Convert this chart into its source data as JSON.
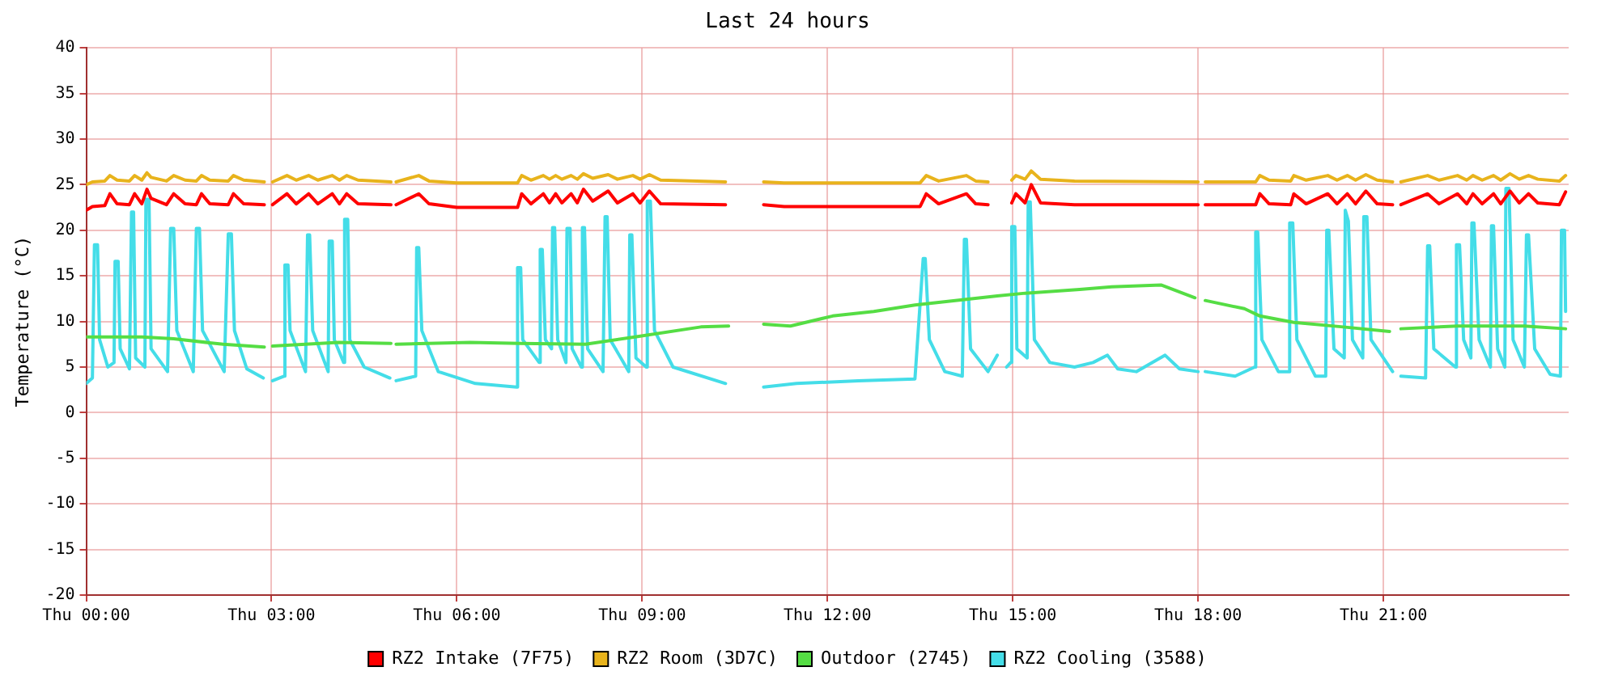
{
  "chart_data": {
    "type": "line",
    "title": "Last 24 hours",
    "ylabel": "Temperature (°C)",
    "xlim": [
      "--01-02T00:00",
      "--01-03T00:00"
    ],
    "ylim": [
      -20,
      40
    ],
    "xticks": [
      {
        "value": "--01-02T00:00",
        "label": "Thu 00:00"
      },
      {
        "value": "--01-02T03:00",
        "label": "Thu 03:00"
      },
      {
        "value": "--01-02T06:00",
        "label": "Thu 06:00"
      },
      {
        "value": "--01-02T09:00",
        "label": "Thu 09:00"
      },
      {
        "value": "--01-02T12:00",
        "label": "Thu 12:00"
      },
      {
        "value": "--01-02T15:00",
        "label": "Thu 15:00"
      },
      {
        "value": "--01-02T18:00",
        "label": "Thu 18:00"
      },
      {
        "value": "--01-02T21:00",
        "label": "Thu 21:00"
      }
    ],
    "yticks": [
      -20,
      -15,
      -10,
      -5,
      0,
      5,
      10,
      15,
      20,
      25,
      30,
      35,
      40
    ],
    "grid": true,
    "legend": "bottom",
    "marker": "none",
    "line_style": "solid",
    "x": [
      "--01-02T00:00",
      "--01-02T00:06",
      "--01-02T00:18",
      "--01-02T00:23",
      "--01-02T00:30",
      "--01-02T00:42",
      "--01-02T00:47",
      "--01-02T00:54",
      "--01-02T00:59",
      "--01-02T01:03",
      "--01-02T01:18",
      "--01-02T01:25",
      "--01-02T01:36",
      "--01-02T01:47",
      "--01-02T01:52",
      "--01-02T02:00",
      "--01-02T02:18",
      "--01-02T02:23",
      "--01-02T02:33",
      "--01-02T02:53",
      "--01-02T02:57",
      "--01-02T03:01",
      "--01-02T03:15",
      "--01-02T03:24",
      "--01-02T03:36",
      "--01-02T03:45",
      "--01-02T03:59",
      "--01-02T04:06",
      "--01-02T04:13",
      "--01-02T04:24",
      "--01-02T04:56",
      "--01-02T04:58",
      "--01-02T05:01",
      "--01-02T05:23",
      "--01-02T05:33",
      "--01-02T06:00",
      "--01-02T06:59",
      "--01-02T07:03",
      "--01-02T07:12",
      "--01-02T07:24",
      "--01-02T07:30",
      "--01-02T07:36",
      "--01-02T07:42",
      "--01-02T07:51",
      "--01-02T07:57",
      "--01-02T08:03",
      "--01-02T08:12",
      "--01-02T08:27",
      "--01-02T08:36",
      "--01-02T08:51",
      "--01-02T08:58",
      "--01-02T09:07",
      "--01-02T09:18",
      "--01-02T10:21",
      "--01-02T10:36",
      "--01-02T10:58",
      "--01-02T11:18",
      "--01-02T13:30",
      "--01-02T13:36",
      "--01-02T13:48",
      "--01-02T14:15",
      "--01-02T14:24",
      "--01-02T14:36",
      "--01-02T14:42",
      "--01-02T14:59",
      "--01-02T15:03",
      "--01-02T15:12",
      "--01-02T15:18",
      "--01-02T15:27",
      "--01-02T16:00",
      "--01-02T18:00",
      "--01-02T18:03",
      "--01-02T18:07",
      "--01-02T18:56",
      "--01-02T19:00",
      "--01-02T19:09",
      "--01-02T19:30",
      "--01-02T19:33",
      "--01-02T19:45",
      "--01-02T20:06",
      "--01-02T20:15",
      "--01-02T20:25",
      "--01-02T20:33",
      "--01-02T20:43",
      "--01-02T20:54",
      "--01-02T21:09",
      "--01-02T21:12",
      "--01-02T21:17",
      "--01-02T21:43",
      "--01-02T21:54",
      "--01-02T22:12",
      "--01-02T22:21",
      "--01-02T22:27",
      "--01-02T22:36",
      "--01-02T22:47",
      "--01-02T22:54",
      "--01-02T23:03",
      "--01-02T23:12",
      "--01-02T23:21",
      "--01-02T23:30",
      "--01-02T23:51",
      "--01-02T23:57"
    ],
    "series": [
      {
        "name": "RZ2 Intake (7F75)",
        "color": "#ff0000",
        "values": [
          22.2,
          22.6,
          22.7,
          24,
          22.9,
          22.8,
          24,
          22.9,
          24.5,
          23.5,
          22.8,
          24,
          22.9,
          22.8,
          24,
          22.9,
          22.8,
          24,
          22.9,
          22.8,
          null,
          22.8,
          24,
          22.9,
          24,
          22.9,
          24,
          22.9,
          24,
          22.9,
          22.8,
          null,
          22.8,
          24,
          22.9,
          22.5,
          22.5,
          24,
          22.9,
          24,
          23,
          24,
          23,
          24,
          23,
          24.5,
          23.2,
          24.3,
          23,
          24,
          23,
          24.3,
          22.9,
          22.8,
          null,
          22.8,
          22.6,
          22.6,
          24,
          22.9,
          24,
          22.9,
          22.8,
          null,
          23,
          24,
          23,
          25,
          23,
          22.8,
          22.8,
          null,
          22.8,
          22.8,
          24,
          22.9,
          22.8,
          24,
          22.9,
          24,
          22.9,
          24,
          22.9,
          24.3,
          22.9,
          22.8,
          null,
          22.8,
          24,
          22.9,
          24,
          22.9,
          24,
          22.9,
          24,
          22.9,
          24.3,
          23,
          24,
          23,
          22.8,
          24.2
        ]
      },
      {
        "name": "RZ2 Room (3D7C)",
        "color": "#e8b31c",
        "values": [
          25,
          25.3,
          25.4,
          26,
          25.5,
          25.4,
          26,
          25.5,
          26.3,
          25.8,
          25.4,
          26,
          25.5,
          25.4,
          26,
          25.5,
          25.4,
          26,
          25.5,
          25.3,
          null,
          25.3,
          26,
          25.5,
          26,
          25.5,
          26,
          25.5,
          26,
          25.5,
          25.3,
          null,
          25.3,
          26,
          25.4,
          25.2,
          25.2,
          26,
          25.5,
          26,
          25.6,
          26,
          25.6,
          26,
          25.6,
          26.2,
          25.7,
          26.1,
          25.6,
          26,
          25.6,
          26.1,
          25.5,
          25.3,
          null,
          25.3,
          25.2,
          25.2,
          26,
          25.4,
          26,
          25.4,
          25.3,
          null,
          25.5,
          26,
          25.6,
          26.5,
          25.6,
          25.4,
          25.3,
          null,
          25.3,
          25.3,
          26,
          25.5,
          25.4,
          26,
          25.5,
          26,
          25.5,
          26,
          25.5,
          26.1,
          25.5,
          25.3,
          null,
          25.3,
          26,
          25.5,
          26,
          25.5,
          26,
          25.5,
          26,
          25.5,
          26.2,
          25.6,
          26,
          25.6,
          25.4,
          26
        ]
      },
      {
        "name": "Outdoor (2745)",
        "color": "#55dd44",
        "x": [
          "--01-02T00:00",
          "--01-02T00:54",
          "--01-02T01:25",
          "--01-02T02:13",
          "--01-02T02:53",
          "--01-02T02:57",
          "--01-02T03:01",
          "--01-02T04:05",
          "--01-02T04:56",
          "--01-02T04:58",
          "--01-02T05:01",
          "--01-02T06:13",
          "--01-02T07:01",
          "--01-02T08:05",
          "--01-02T08:53",
          "--01-02T09:57",
          "--01-02T10:24",
          "--01-02T10:36",
          "--01-02T10:58",
          "--01-02T11:24",
          "--01-02T12:05",
          "--01-02T12:45",
          "--01-02T13:25",
          "--01-02T14:13",
          "--01-02T14:45",
          "--01-02T15:12",
          "--01-02T16:05",
          "--01-02T16:36",
          "--01-02T17:24",
          "--01-02T17:57",
          "--01-02T18:03",
          "--01-02T18:07",
          "--01-02T18:45",
          "--01-02T19:00",
          "--01-02T19:33",
          "--01-02T20:21",
          "--01-02T21:06",
          "--01-02T21:12",
          "--01-02T21:17",
          "--01-02T22:12",
          "--01-02T23:17",
          "--01-02T23:57"
        ],
        "values": [
          8.3,
          8.3,
          8.1,
          7.5,
          7.2,
          null,
          7.3,
          7.7,
          7.6,
          null,
          7.5,
          7.7,
          7.6,
          7.5,
          8.3,
          9.4,
          9.5,
          null,
          9.7,
          9.5,
          10.6,
          11.1,
          11.8,
          12.4,
          12.8,
          13.1,
          13.5,
          13.8,
          14,
          12.6,
          null,
          12.3,
          11.4,
          10.6,
          9.9,
          9.4,
          8.9,
          null,
          9.2,
          9.5,
          9.5,
          9.2
        ]
      },
      {
        "name": "RZ2 Cooling (3588)",
        "color": "#44dde8",
        "x": [
          "--01-02T00:00",
          "--01-02T00:06",
          "--01-02T00:08",
          "--01-02T00:11",
          "--01-02T00:13",
          "--01-02T00:21",
          "--01-02T00:27",
          "--01-02T00:28",
          "--01-02T00:31",
          "--01-02T00:33",
          "--01-02T00:42",
          "--01-02T00:44",
          "--01-02T00:46",
          "--01-02T00:48",
          "--01-02T00:57",
          "--01-02T00:58",
          "--01-02T01:01",
          "--01-02T01:03",
          "--01-02T01:19",
          "--01-02T01:22",
          "--01-02T01:25",
          "--01-02T01:28",
          "--01-02T01:44",
          "--01-02T01:47",
          "--01-02T01:50",
          "--01-02T01:53",
          "--01-02T02:14",
          "--01-02T02:18",
          "--01-02T02:21",
          "--01-02T02:24",
          "--01-02T02:36",
          "--01-02T02:52",
          "--01-02T02:57",
          "--01-02T03:01",
          "--01-02T03:12",
          "--01-02T03:13",
          "--01-02T03:16",
          "--01-02T03:18",
          "--01-02T03:33",
          "--01-02T03:35",
          "--01-02T03:37",
          "--01-02T03:40",
          "--01-02T03:55",
          "--01-02T03:56",
          "--01-02T03:59",
          "--01-02T04:01",
          "--01-02T04:10",
          "--01-02T04:11",
          "--01-02T04:14",
          "--01-02T04:16",
          "--01-02T04:30",
          "--01-02T04:55",
          "--01-02T04:58",
          "--01-02T05:01",
          "--01-02T05:20",
          "--01-02T05:21",
          "--01-02T05:23",
          "--01-02T05:26",
          "--01-02T05:42",
          "--01-02T06:18",
          "--01-02T06:58",
          "--01-02T06:59",
          "--01-02T07:02",
          "--01-02T07:04",
          "--01-02T07:20",
          "--01-02T07:21",
          "--01-02T07:23",
          "--01-02T07:26",
          "--01-02T07:32",
          "--01-02T07:33",
          "--01-02T07:35",
          "--01-02T07:38",
          "--01-02T07:46",
          "--01-02T07:47",
          "--01-02T07:50",
          "--01-02T07:52",
          "--01-02T08:01",
          "--01-02T08:02",
          "--01-02T08:04",
          "--01-02T08:07",
          "--01-02T08:22",
          "--01-02T08:24",
          "--01-02T08:26",
          "--01-02T08:29",
          "--01-02T08:47",
          "--01-02T08:48",
          "--01-02T08:50",
          "--01-02T08:54",
          "--01-02T09:04",
          "--01-02T09:05",
          "--01-02T09:08",
          "--01-02T09:12",
          "--01-02T09:30",
          "--01-02T10:21",
          "--01-02T10:36",
          "--01-02T10:58",
          "--01-02T11:30",
          "--01-02T12:30",
          "--01-02T13:25",
          "--01-02T13:33",
          "--01-02T13:35",
          "--01-02T13:39",
          "--01-02T13:54",
          "--01-02T14:11",
          "--01-02T14:13",
          "--01-02T14:15",
          "--01-02T14:19",
          "--01-02T14:36",
          "--01-02T14:45",
          "--01-02T14:47",
          "--01-02T14:54",
          "--01-02T14:58",
          "--01-02T14:59",
          "--01-02T15:02",
          "--01-02T15:04",
          "--01-02T15:14",
          "--01-02T15:15",
          "--01-02T15:17",
          "--01-02T15:21",
          "--01-02T15:36",
          "--01-02T16:00",
          "--01-02T16:18",
          "--01-02T16:32",
          "--01-02T16:42",
          "--01-02T17:00",
          "--01-02T17:28",
          "--01-02T17:42",
          "--01-02T18:00",
          "--01-02T18:03",
          "--01-02T18:07",
          "--01-02T18:36",
          "--01-02T18:55",
          "--01-02T18:56",
          "--01-02T18:58",
          "--01-02T19:02",
          "--01-02T19:18",
          "--01-02T19:28",
          "--01-02T19:29",
          "--01-02T19:32",
          "--01-02T19:36",
          "--01-02T19:54",
          "--01-02T20:04",
          "--01-02T20:05",
          "--01-02T20:07",
          "--01-02T20:12",
          "--01-02T20:22",
          "--01-02T20:23",
          "--01-02T20:26",
          "--01-02T20:30",
          "--01-02T20:40",
          "--01-02T20:41",
          "--01-02T20:44",
          "--01-02T20:48",
          "--01-02T21:09",
          "--01-02T21:12",
          "--01-02T21:17",
          "--01-02T21:41",
          "--01-02T21:43",
          "--01-02T21:45",
          "--01-02T21:49",
          "--01-02T22:10",
          "--01-02T22:11",
          "--01-02T22:14",
          "--01-02T22:18",
          "--01-02T22:25",
          "--01-02T22:26",
          "--01-02T22:28",
          "--01-02T22:33",
          "--01-02T22:44",
          "--01-02T22:45",
          "--01-02T22:47",
          "--01-02T22:51",
          "--01-02T22:58",
          "--01-02T22:59",
          "--01-02T23:02",
          "--01-02T23:06",
          "--01-02T23:17",
          "--01-02T23:19",
          "--01-02T23:21",
          "--01-02T23:27",
          "--01-02T23:42",
          "--01-02T23:52",
          "--01-02T23:53",
          "--01-02T23:56",
          "--01-02T23:57"
        ],
        "values": [
          3.2,
          3.8,
          18.4,
          18.4,
          8,
          5,
          5.5,
          16.6,
          16.6,
          7,
          4.8,
          22,
          22,
          6,
          5,
          23.4,
          23.4,
          7,
          4.5,
          20.2,
          20.2,
          9,
          4.5,
          20.2,
          20.2,
          9,
          4.5,
          19.6,
          19.6,
          9,
          4.8,
          3.8,
          null,
          3.5,
          4,
          16.2,
          16.2,
          9,
          4.5,
          19.5,
          19.5,
          9,
          4.5,
          18.8,
          18.8,
          8,
          5.5,
          21.2,
          21.2,
          8,
          5,
          3.8,
          null,
          3.5,
          4,
          18.1,
          18.1,
          9,
          4.5,
          3.2,
          2.8,
          15.9,
          15.9,
          8,
          5.5,
          17.9,
          17.9,
          8,
          7,
          20.3,
          20.3,
          8,
          5.5,
          20.2,
          20.2,
          7,
          5,
          20.3,
          20.3,
          7,
          4.5,
          21.5,
          21.5,
          8,
          4.5,
          19.5,
          19.5,
          6,
          5,
          23.2,
          23.2,
          9,
          5,
          3.2,
          null,
          2.8,
          3.2,
          3.5,
          3.7,
          16.9,
          16.9,
          8,
          4.5,
          4,
          19,
          19,
          7,
          4.5,
          6.3,
          null,
          5,
          5.5,
          20.4,
          20.4,
          7,
          6,
          23.1,
          23.1,
          8,
          5.5,
          5,
          5.5,
          6.3,
          4.8,
          4.5,
          6.3,
          4.8,
          4.5,
          null,
          4.5,
          4,
          5,
          19.8,
          19.8,
          8,
          4.5,
          4.5,
          20.8,
          20.8,
          8,
          4,
          4,
          20,
          20,
          7,
          6,
          22.2,
          21,
          8,
          6,
          21.5,
          21.5,
          8,
          4.5,
          null,
          4,
          3.8,
          18.3,
          18.3,
          7,
          5,
          18.4,
          18.4,
          8,
          6,
          20.8,
          20.8,
          8,
          5,
          20.5,
          20.5,
          7,
          5,
          24.6,
          24.6,
          8,
          5,
          19.5,
          19.5,
          7,
          4.2,
          4,
          20,
          20,
          11.1
        ]
      }
    ]
  }
}
